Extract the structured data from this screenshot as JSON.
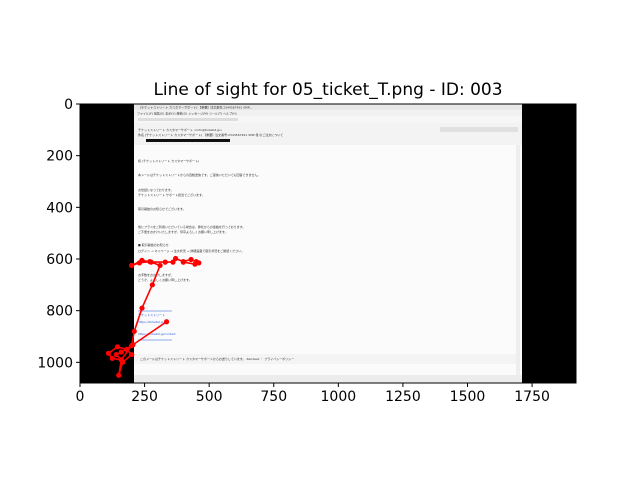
{
  "chart_data": {
    "type": "scatter",
    "title": "Line of sight for 05_ticket_T.png - ID: 003",
    "xlabel": "",
    "ylabel": "",
    "xlim": [
      0,
      1920
    ],
    "ylim": [
      1080,
      0
    ],
    "y_inverted": true,
    "grid": false,
    "x_ticks": [
      0,
      250,
      500,
      750,
      1000,
      1250,
      1500,
      1750
    ],
    "y_ticks": [
      0,
      200,
      400,
      600,
      800,
      1000
    ],
    "background_image": "email-screenshot",
    "series": [
      {
        "color": "#ff0000",
        "points": [
          [
            335,
            843
          ],
          [
            205,
            932
          ],
          [
            160,
            960
          ],
          [
            140,
            970
          ],
          [
            160,
            990
          ],
          [
            125,
            985
          ],
          [
            110,
            965
          ],
          [
            145,
            940
          ],
          [
            180,
            950
          ],
          [
            200,
            970
          ],
          [
            165,
            1000
          ],
          [
            150,
            1050
          ],
          [
            160,
            990
          ],
          [
            200,
            935
          ],
          [
            210,
            880
          ],
          [
            240,
            790
          ],
          [
            280,
            700
          ],
          [
            310,
            625
          ],
          [
            270,
            610
          ],
          [
            230,
            615
          ],
          [
            200,
            625
          ],
          [
            240,
            605
          ],
          [
            275,
            612
          ],
          [
            330,
            612
          ],
          [
            360,
            612
          ],
          [
            370,
            598
          ],
          [
            400,
            610
          ],
          [
            430,
            602
          ],
          [
            450,
            610
          ],
          [
            460,
            615
          ],
          [
            445,
            620
          ],
          [
            400,
            612
          ]
        ]
      }
    ]
  },
  "mail_text": {
    "window_title": "[チケットストリート カスタマーサポート] 【重要】注文番号:2344567491 SMP...",
    "menu": "ファイル(F)  編集(E)  表示(V)  移動(G)  メッセージ(M)  ツール(T)  ヘルプ(H)",
    "from": "チケットストリート カスタマーサポート <info@ticketst.jp>",
    "subject": "件名 [チケットストリート カスタマーサポート] 【重要】注文番号:2344567491 SMP 様 のご注文について",
    "greeting": "様 (チケットストリート カスタマーサポート)",
    "line1": "本メールはチケットストリートからの自動送信です。ご返信いただいても回答できません。",
    "line2": "お世話になっております。",
    "line3": "チケットストリート サポート担当でございます。",
    "line4": "取引開始のお知らせでございます。",
    "line5": "",
    "line6": "他にプラスをご利用いただいている場合は、弊社からの連絡を行っております。",
    "line7": "ご不便をおかけいたしますが、何卒よろしくお願い申し上げます。",
    "line8": "■ 取引開始のお知らせ",
    "line9": "ログイン → マイページ → 注文状況 → 詳細画面で取引状況をご確認ください。",
    "line10": "お手数をおかけしますが、",
    "line11": "どうぞ、よろしくお願い申し上げます。",
    "sig1": "チケットストリート",
    "sig2": "https://ticketst.jp",
    "sig3": "https://ticketst.jp/contact",
    "footer": "このメールはチケットストリート カスタマーサポートからお送りしています。 Zendesk ・ プライバシーポリシー"
  }
}
